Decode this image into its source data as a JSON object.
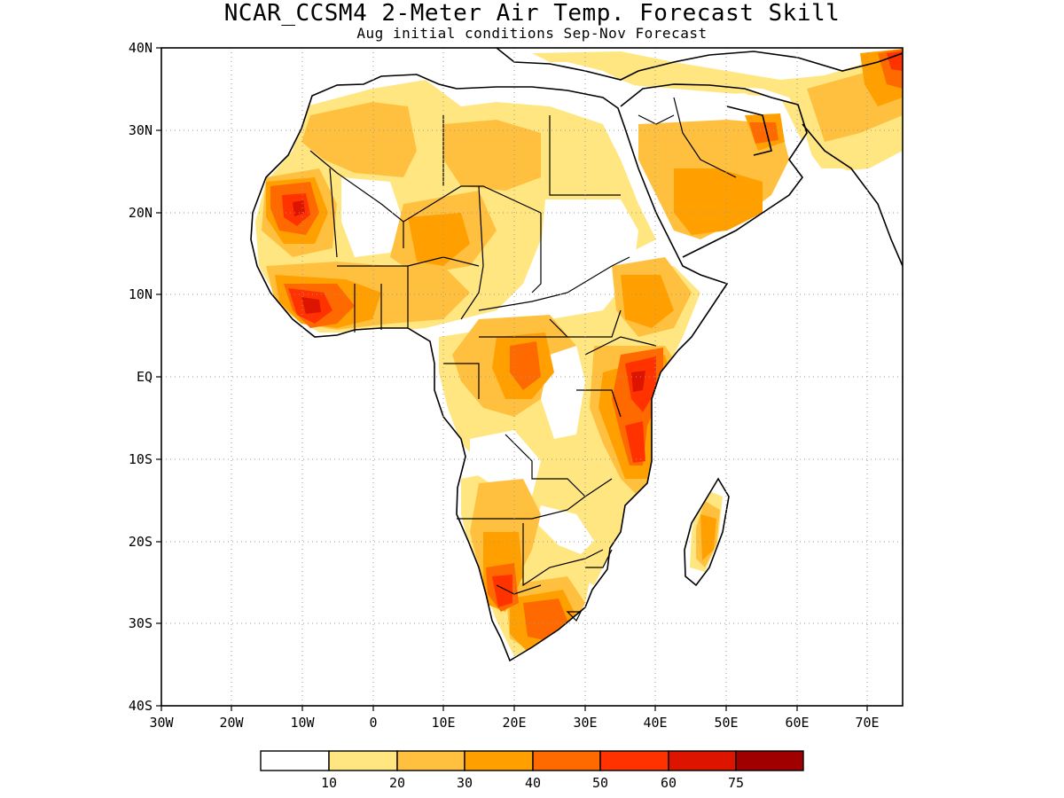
{
  "title": "NCAR_CCSM4 2-Meter Air Temp. Forecast Skill",
  "subtitle": "Aug initial conditions  Sep-Nov Forecast",
  "map": {
    "region": "Africa",
    "lat_labels": [
      "40N",
      "30N",
      "20N",
      "10N",
      "EQ",
      "10S",
      "20S",
      "30S",
      "40S"
    ],
    "lon_labels": [
      "30W",
      "20W",
      "10W",
      "0",
      "10E",
      "20E",
      "30E",
      "40E",
      "50E",
      "60E",
      "70E"
    ],
    "lon_range": [
      -30,
      75
    ],
    "lat_range": [
      -40,
      40
    ],
    "grid": "dotted"
  },
  "colorbar": {
    "levels": [
      "10",
      "20",
      "30",
      "40",
      "50",
      "60",
      "75"
    ],
    "colors": [
      "#ffffff",
      "#ffe680",
      "#ffc040",
      "#ffa000",
      "#ff6a00",
      "#ff3200",
      "#dc1400",
      "#a00000"
    ]
  }
}
